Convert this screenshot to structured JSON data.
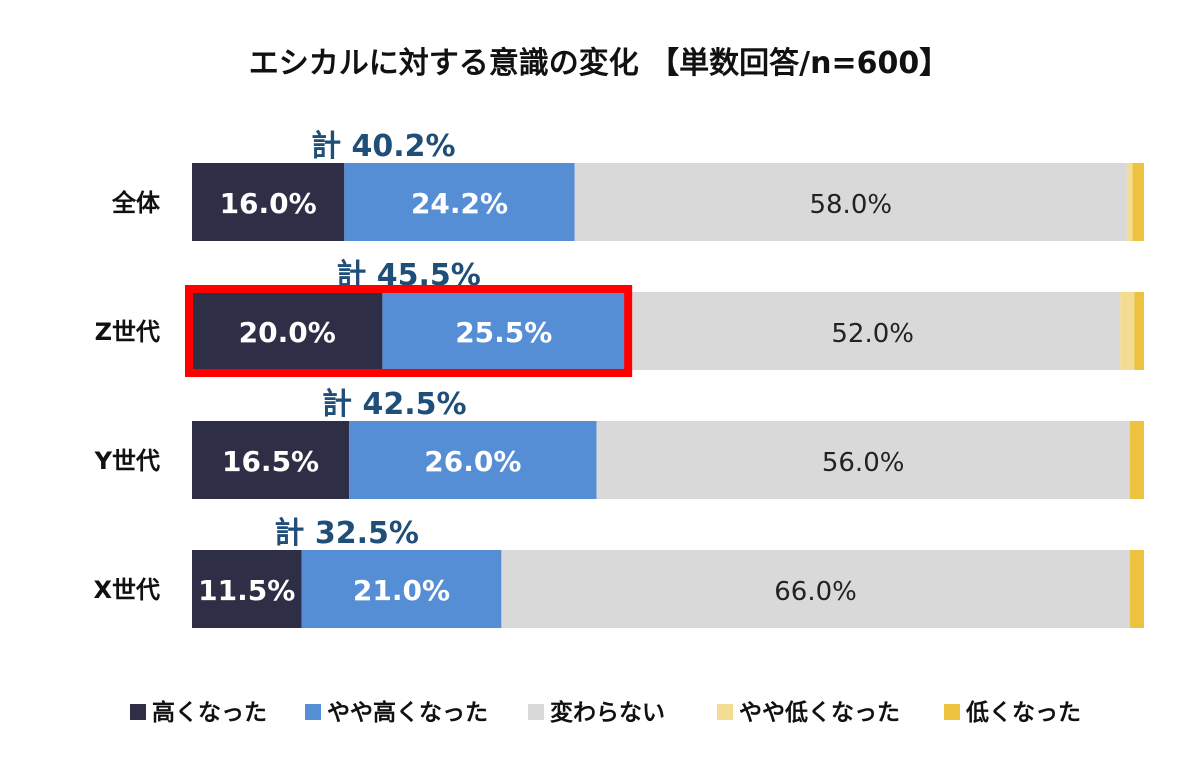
{
  "chart_data": {
    "type": "bar",
    "stacked": true,
    "orientation": "horizontal",
    "title": "エシカルに対する意識の変化 【単数回答/n=600】",
    "categories": [
      "全体",
      "Z世代",
      "Y世代",
      "X世代"
    ],
    "series": [
      {
        "name": "高くなった",
        "color": "#2e2f46",
        "values": [
          16.0,
          20.0,
          16.5,
          11.5
        ]
      },
      {
        "name": "やや高くなった",
        "color": "#568ed6",
        "values": [
          24.2,
          25.5,
          26.0,
          21.0
        ]
      },
      {
        "name": "変わらない",
        "color": "#d9d9d9",
        "values": [
          58.0,
          52.0,
          56.0,
          66.0
        ]
      },
      {
        "name": "やや低くなった",
        "color": "#f5dc93",
        "values": [
          0.6,
          1.5,
          0.0,
          0.0
        ]
      },
      {
        "name": "低くなった",
        "color": "#edc23e",
        "values": [
          1.2,
          1.0,
          1.5,
          1.5
        ]
      }
    ],
    "data_labels": [
      [
        "16.0%",
        "24.2%",
        "58.0%"
      ],
      [
        "20.0%",
        "25.5%",
        "52.0%"
      ],
      [
        "16.5%",
        "26.0%",
        "56.0%"
      ],
      [
        "11.5%",
        "21.0%",
        "66.0%"
      ]
    ],
    "totals": [
      "計 40.2%",
      "計 45.5%",
      "計 42.5%",
      "計 32.5%"
    ],
    "highlight_category": "Z世代",
    "highlight_color": "#ff0000",
    "total_label_color": "#1f4e79",
    "xlim": [
      0,
      100
    ],
    "grid": false,
    "legend_position": "bottom"
  }
}
